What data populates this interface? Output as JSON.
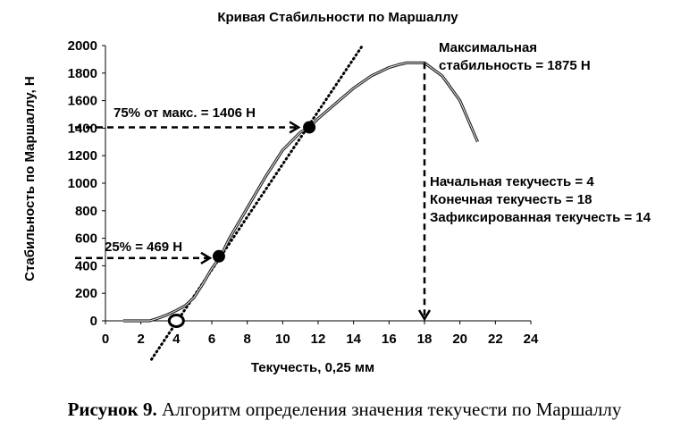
{
  "chart_data": {
    "type": "line",
    "title": "Кривая Стабильности по Маршаллу",
    "xlabel": "Текучесть, 0,25 мм",
    "ylabel": "Стабильность по Маршаллу,  Н",
    "xlim": [
      0,
      24
    ],
    "ylim": [
      0,
      2000
    ],
    "xticks": [
      0,
      2,
      4,
      6,
      8,
      10,
      12,
      14,
      16,
      18,
      20,
      22,
      24
    ],
    "yticks": [
      0,
      200,
      400,
      600,
      800,
      1000,
      1200,
      1400,
      1600,
      1800,
      2000
    ],
    "series": [
      {
        "x": [
          1,
          2.5,
          3,
          3.5,
          4,
          4.5,
          5,
          5.5,
          6,
          6.5,
          7,
          8,
          9,
          10,
          11,
          11.5,
          12,
          13,
          14,
          15,
          16,
          16.5,
          17,
          18,
          19,
          20,
          21
        ],
        "y": [
          0,
          0,
          20,
          45,
          75,
          110,
          170,
          270,
          380,
          469,
          600,
          820,
          1040,
          1240,
          1370,
          1406,
          1470,
          1580,
          1690,
          1780,
          1840,
          1860,
          1875,
          1875,
          1780,
          1600,
          1300
        ]
      }
    ],
    "tangent": {
      "x": [
        2.6,
        14.5
      ],
      "y": [
        -280,
        2000
      ]
    },
    "points": [
      {
        "x": 4,
        "y": 0,
        "style": "open"
      },
      {
        "x": 6.4,
        "y": 469,
        "style": "filled"
      },
      {
        "x": 11.5,
        "y": 1406,
        "style": "filled"
      }
    ],
    "annotations": {
      "max_label_line1": "Максимальная",
      "max_label_line2": "стабильность = 1875 Н",
      "p75_label": "75% от макс. = 1406 Н",
      "p25_label": "25% = 469 Н",
      "flow_initial": "Начальная текучесть = 4",
      "flow_final": "Конечная текучесть = 18",
      "flow_fixed": "Зафиксированная текучесть = 14"
    }
  },
  "caption": {
    "bold": "Рисунок 9.",
    "text": " Алгоритм определения значения текучести по Маршаллу"
  }
}
